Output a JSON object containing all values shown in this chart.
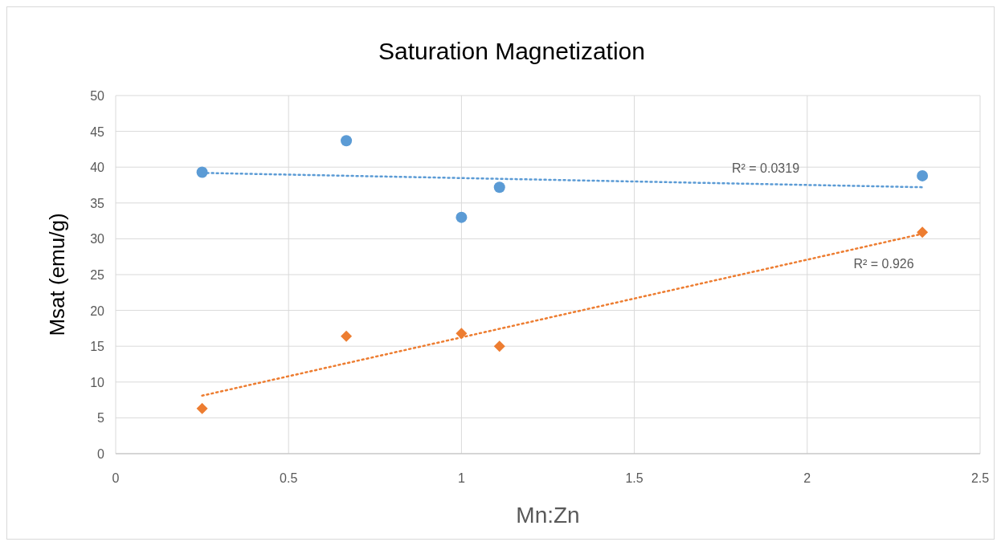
{
  "chart_data": {
    "type": "scatter",
    "title": "Saturation Magnetization",
    "xlabel": "Mn:Zn",
    "ylabel": "Msat (emu/g)",
    "xlim": [
      0,
      2.5
    ],
    "xticks": [
      0,
      0.5,
      1,
      1.5,
      2,
      2.5
    ],
    "ylim": [
      0,
      50
    ],
    "yticks": [
      0,
      5,
      10,
      15,
      20,
      25,
      30,
      35,
      40,
      45,
      50
    ],
    "grid": true,
    "series": [
      {
        "color": "#5b9bd5",
        "marker": "circle",
        "x": [
          0.25,
          0.667,
          1,
          1.11,
          2.333
        ],
        "values": [
          39.3,
          43.7,
          33.0,
          37.2,
          38.8
        ]
      },
      {
        "color": "#ed7d31",
        "marker": "diamond",
        "x": [
          0.25,
          0.667,
          1,
          1.11,
          2.333
        ],
        "values": [
          6.3,
          16.4,
          16.8,
          15.0,
          30.9
        ]
      },
      {
        "type": "line",
        "color": "#5b9bd5",
        "line_style": "dotted",
        "marker": "none",
        "x": [
          0.25,
          2.333
        ],
        "values": [
          39.2,
          37.2
        ]
      },
      {
        "type": "line",
        "color": "#ed7d31",
        "line_style": "dotted",
        "marker": "none",
        "x": [
          0.25,
          2.333
        ],
        "values": [
          8.1,
          30.7
        ]
      }
    ],
    "annotations": [
      "R² = 0.0319",
      "R² = 0.926"
    ]
  }
}
